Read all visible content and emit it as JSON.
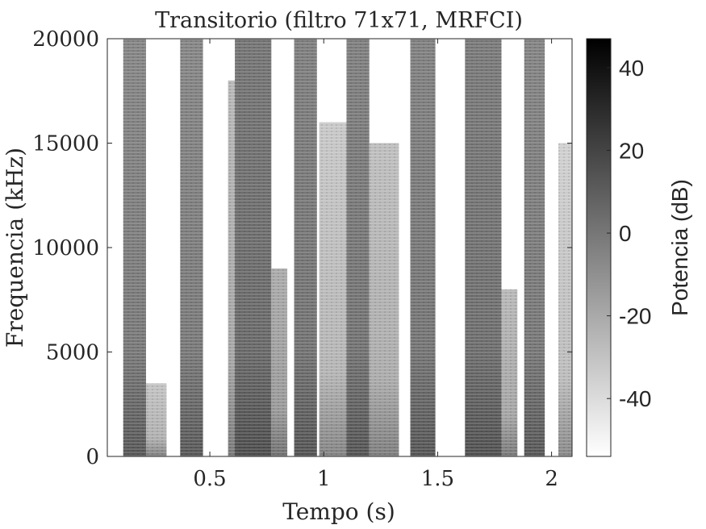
{
  "chart_data": {
    "type": "heatmap",
    "title": "Transitorio (filtro 71x71, MRFCI)",
    "xlabel": "Tempo (s)",
    "ylabel": "Frequencia (kHz)",
    "xlim": [
      0.05,
      2.09
    ],
    "ylim": [
      0,
      20000
    ],
    "x_ticks": [
      0.5,
      1,
      1.5,
      2
    ],
    "x_tick_labels": [
      "0.5",
      "1",
      "1.5",
      "2"
    ],
    "y_ticks": [
      0,
      5000,
      10000,
      15000,
      20000
    ],
    "y_tick_labels": [
      "0",
      "5000",
      "10000",
      "15000",
      "20000"
    ],
    "colorbar": {
      "label": "Potencia (dB)",
      "range": [
        -54,
        47
      ],
      "ticks": [
        -40,
        -20,
        0,
        20,
        40
      ],
      "tick_labels": [
        "-40",
        "-20",
        "0",
        "20",
        "40"
      ],
      "colormap": "gray reversed (white = low, black = high)"
    },
    "bands": [
      {
        "t0": 0.12,
        "t1": 0.22,
        "fmax": 20000,
        "level": -5
      },
      {
        "t0": 0.22,
        "t1": 0.31,
        "fmax": 3500,
        "level": -30
      },
      {
        "t0": 0.37,
        "t1": 0.47,
        "fmax": 20000,
        "level": -5
      },
      {
        "t0": 0.58,
        "t1": 0.64,
        "fmax": 18000,
        "level": -25
      },
      {
        "t0": 0.61,
        "t1": 0.77,
        "fmax": 20000,
        "level": 2
      },
      {
        "t0": 0.77,
        "t1": 0.84,
        "fmax": 9000,
        "level": -20
      },
      {
        "t0": 0.87,
        "t1": 0.97,
        "fmax": 20000,
        "level": -2
      },
      {
        "t0": 0.98,
        "t1": 1.1,
        "fmax": 16000,
        "level": -32
      },
      {
        "t0": 1.1,
        "t1": 1.2,
        "fmax": 20000,
        "level": -2
      },
      {
        "t0": 1.2,
        "t1": 1.33,
        "fmax": 15000,
        "level": -28
      },
      {
        "t0": 1.38,
        "t1": 1.49,
        "fmax": 20000,
        "level": -3
      },
      {
        "t0": 1.62,
        "t1": 1.78,
        "fmax": 20000,
        "level": 0
      },
      {
        "t0": 1.78,
        "t1": 1.85,
        "fmax": 8000,
        "level": -25
      },
      {
        "t0": 1.88,
        "t1": 1.97,
        "fmax": 20000,
        "level": -4
      },
      {
        "t0": 2.03,
        "t1": 2.09,
        "fmax": 15000,
        "level": -35
      }
    ]
  }
}
